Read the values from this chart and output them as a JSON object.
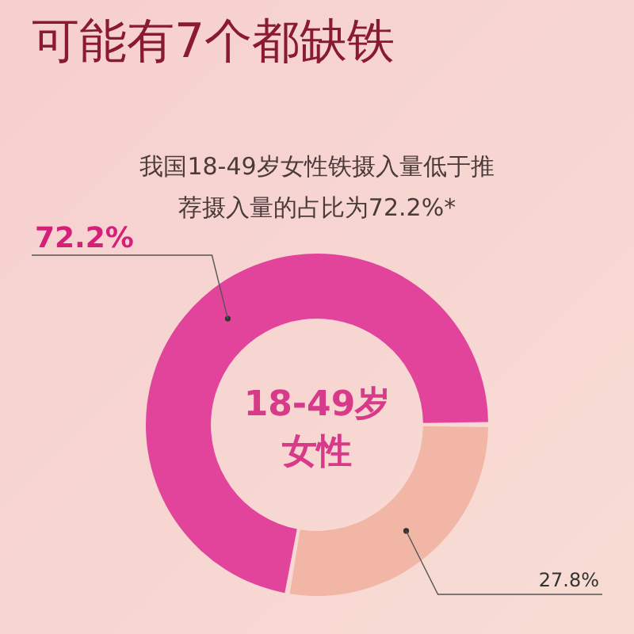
{
  "chart_data": {
    "type": "donut",
    "title": "可能有7个都缺铁",
    "subtitle": "我国18-49岁女性铁摄入量低于推荐摄入量的占比为72.2%*",
    "categories": [
      null,
      null
    ],
    "values": [
      72.2,
      27.8
    ],
    "colors": [
      "#e2449c",
      "#f2b6a6"
    ],
    "value_labels": [
      "72.2%",
      "27.8%"
    ],
    "annotations": [
      "18-49岁女性"
    ]
  }
}
